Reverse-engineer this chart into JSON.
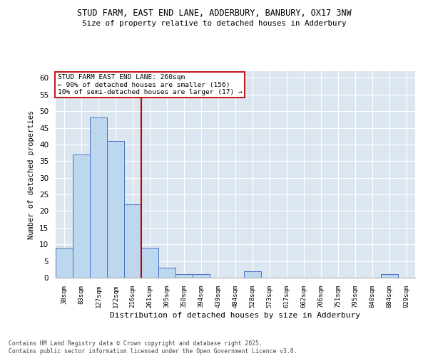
{
  "title": "STUD FARM, EAST END LANE, ADDERBURY, BANBURY, OX17 3NW",
  "subtitle": "Size of property relative to detached houses in Adderbury",
  "xlabel": "Distribution of detached houses by size in Adderbury",
  "ylabel": "Number of detached properties",
  "bar_values": [
    9,
    37,
    48,
    41,
    22,
    9,
    3,
    1,
    1,
    0,
    0,
    2,
    0,
    0,
    0,
    0,
    0,
    0,
    0,
    1,
    0
  ],
  "bin_labels": [
    "38sqm",
    "83sqm",
    "127sqm",
    "172sqm",
    "216sqm",
    "261sqm",
    "305sqm",
    "350sqm",
    "394sqm",
    "439sqm",
    "484sqm",
    "528sqm",
    "573sqm",
    "617sqm",
    "662sqm",
    "706sqm",
    "751sqm",
    "795sqm",
    "840sqm",
    "884sqm",
    "929sqm"
  ],
  "bar_color": "#bdd7ee",
  "bar_edge_color": "#4472c4",
  "vline_x": 4.5,
  "vline_color": "#c00000",
  "annotation_text": "STUD FARM EAST END LANE: 260sqm\n← 90% of detached houses are smaller (156)\n10% of semi-detached houses are larger (17) →",
  "annotation_box_color": "#ffffff",
  "annotation_box_edge": "#c00000",
  "ylim": [
    0,
    62
  ],
  "yticks": [
    0,
    5,
    10,
    15,
    20,
    25,
    30,
    35,
    40,
    45,
    50,
    55,
    60
  ],
  "plot_bg_color": "#dce6f1",
  "footer_text": "Contains HM Land Registry data © Crown copyright and database right 2025.\nContains public sector information licensed under the Open Government Licence v3.0.",
  "fig_bg_color": "#ffffff"
}
